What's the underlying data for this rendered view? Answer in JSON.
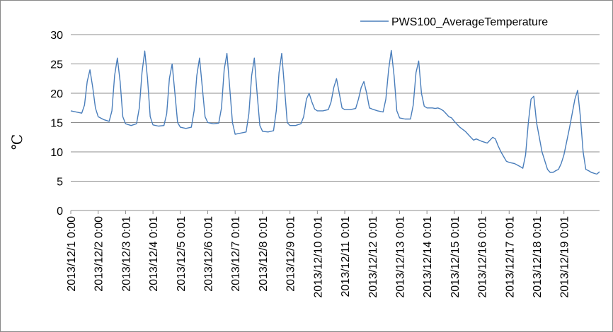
{
  "chart_data": {
    "type": "line",
    "title": "",
    "xlabel": "",
    "ylabel": "℃",
    "ylim": [
      0,
      30
    ],
    "yticks": [
      "0",
      "5",
      "10",
      "15",
      "20",
      "25",
      "30"
    ],
    "grid": "horizontal",
    "legend_position": "top-right",
    "x_tick_labels": [
      "2013/12/1 0:00",
      "2013/12/2 0:00",
      "2013/12/3 0:01",
      "2013/12/4 0:01",
      "2013/12/5 0:01",
      "2013/12/6 0:01",
      "2013/12/7 0:01",
      "2013/12/8 0:01",
      "2013/12/9 0:01",
      "2013/12/10 0:01",
      "2013/12/11 0:01",
      "2013/12/12 0:01",
      "2013/12/13 0:01",
      "2013/12/14 0:01",
      "2013/12/15 0:01",
      "2013/12/16 0:01",
      "2013/12/17 0:01",
      "2013/12/18 0:01",
      "2013/12/19 0:01"
    ],
    "series": [
      {
        "name": "PWS100_AverageTemperature",
        "color": "#4a7ebb",
        "x_days": [
          0,
          0.2,
          0.4,
          0.5,
          0.6,
          0.7,
          0.8,
          0.9,
          1.0,
          1.2,
          1.4,
          1.5,
          1.6,
          1.7,
          1.8,
          1.9,
          2.0,
          2.2,
          2.4,
          2.5,
          2.6,
          2.7,
          2.8,
          2.9,
          3.0,
          3.2,
          3.4,
          3.5,
          3.6,
          3.7,
          3.8,
          3.9,
          4.0,
          4.2,
          4.4,
          4.5,
          4.6,
          4.7,
          4.8,
          4.9,
          5.0,
          5.2,
          5.4,
          5.5,
          5.6,
          5.7,
          5.8,
          5.9,
          6.0,
          6.2,
          6.4,
          6.5,
          6.6,
          6.7,
          6.8,
          6.9,
          7.0,
          7.2,
          7.4,
          7.5,
          7.6,
          7.7,
          7.8,
          7.9,
          8.0,
          8.2,
          8.4,
          8.5,
          8.6,
          8.7,
          8.8,
          8.9,
          9.0,
          9.2,
          9.4,
          9.5,
          9.6,
          9.7,
          9.8,
          9.9,
          10.0,
          10.2,
          10.4,
          10.5,
          10.6,
          10.7,
          10.8,
          10.9,
          11.0,
          11.2,
          11.4,
          11.5,
          11.6,
          11.7,
          11.8,
          11.9,
          12.0,
          12.2,
          12.4,
          12.5,
          12.6,
          12.7,
          12.8,
          12.9,
          13.0,
          13.2,
          13.3,
          13.4,
          13.5,
          13.6,
          13.7,
          13.8,
          13.9,
          14.0,
          14.2,
          14.4,
          14.5,
          14.6,
          14.7,
          14.8,
          14.9,
          15.0,
          15.2,
          15.4,
          15.5,
          15.6,
          15.7,
          15.8,
          15.9,
          16.0,
          16.2,
          16.4,
          16.5,
          16.6,
          16.7,
          16.8,
          16.9,
          17.0,
          17.2,
          17.4,
          17.5,
          17.6,
          17.7,
          17.8,
          17.9,
          18.0,
          18.2,
          18.4,
          18.5,
          18.6,
          18.7,
          18.8,
          18.9,
          19.0,
          19.2,
          19.3
        ],
        "y": [
          17.0,
          16.8,
          16.6,
          18.0,
          22.0,
          24.0,
          21.0,
          17.5,
          16.0,
          15.5,
          15.2,
          17.0,
          23.0,
          26.0,
          22.0,
          16.0,
          14.8,
          14.5,
          14.8,
          17.5,
          23.5,
          27.2,
          22.5,
          16.0,
          14.6,
          14.4,
          14.5,
          16.5,
          22.5,
          25.0,
          20.0,
          15.0,
          14.2,
          14.0,
          14.2,
          17.0,
          23.0,
          26.0,
          21.0,
          16.0,
          15.0,
          14.8,
          14.9,
          17.5,
          24.0,
          26.8,
          21.0,
          15.0,
          13.0,
          13.2,
          13.4,
          16.5,
          23.0,
          26.0,
          20.0,
          14.5,
          13.5,
          13.4,
          13.6,
          17.0,
          23.5,
          26.8,
          21.0,
          15.0,
          14.5,
          14.5,
          14.8,
          16.0,
          19.0,
          20.0,
          18.5,
          17.3,
          17.0,
          17.0,
          17.2,
          18.5,
          21.0,
          22.5,
          20.0,
          17.5,
          17.2,
          17.2,
          17.4,
          19.0,
          21.0,
          22.0,
          20.0,
          17.5,
          17.3,
          17.0,
          16.8,
          19.0,
          24.0,
          27.3,
          23.0,
          17.0,
          15.8,
          15.6,
          15.6,
          18.0,
          23.5,
          25.5,
          20.0,
          17.8,
          17.5,
          17.5,
          17.4,
          17.5,
          17.3,
          17.0,
          16.5,
          16.0,
          15.8,
          15.2,
          14.2,
          13.5,
          13.0,
          12.5,
          12.0,
          12.2,
          12.0,
          11.8,
          11.5,
          12.5,
          12.2,
          11.0,
          10.0,
          9.2,
          8.4,
          8.2,
          8.0,
          7.5,
          7.2,
          9.5,
          15.0,
          19.0,
          19.5,
          15.0,
          10.0,
          7.0,
          6.5,
          6.5,
          6.8,
          7.0,
          8.0,
          9.5,
          14.0,
          19.0,
          20.5,
          16.0,
          10.0,
          7.0,
          6.8,
          6.5,
          6.2,
          6.6
        ]
      }
    ]
  }
}
